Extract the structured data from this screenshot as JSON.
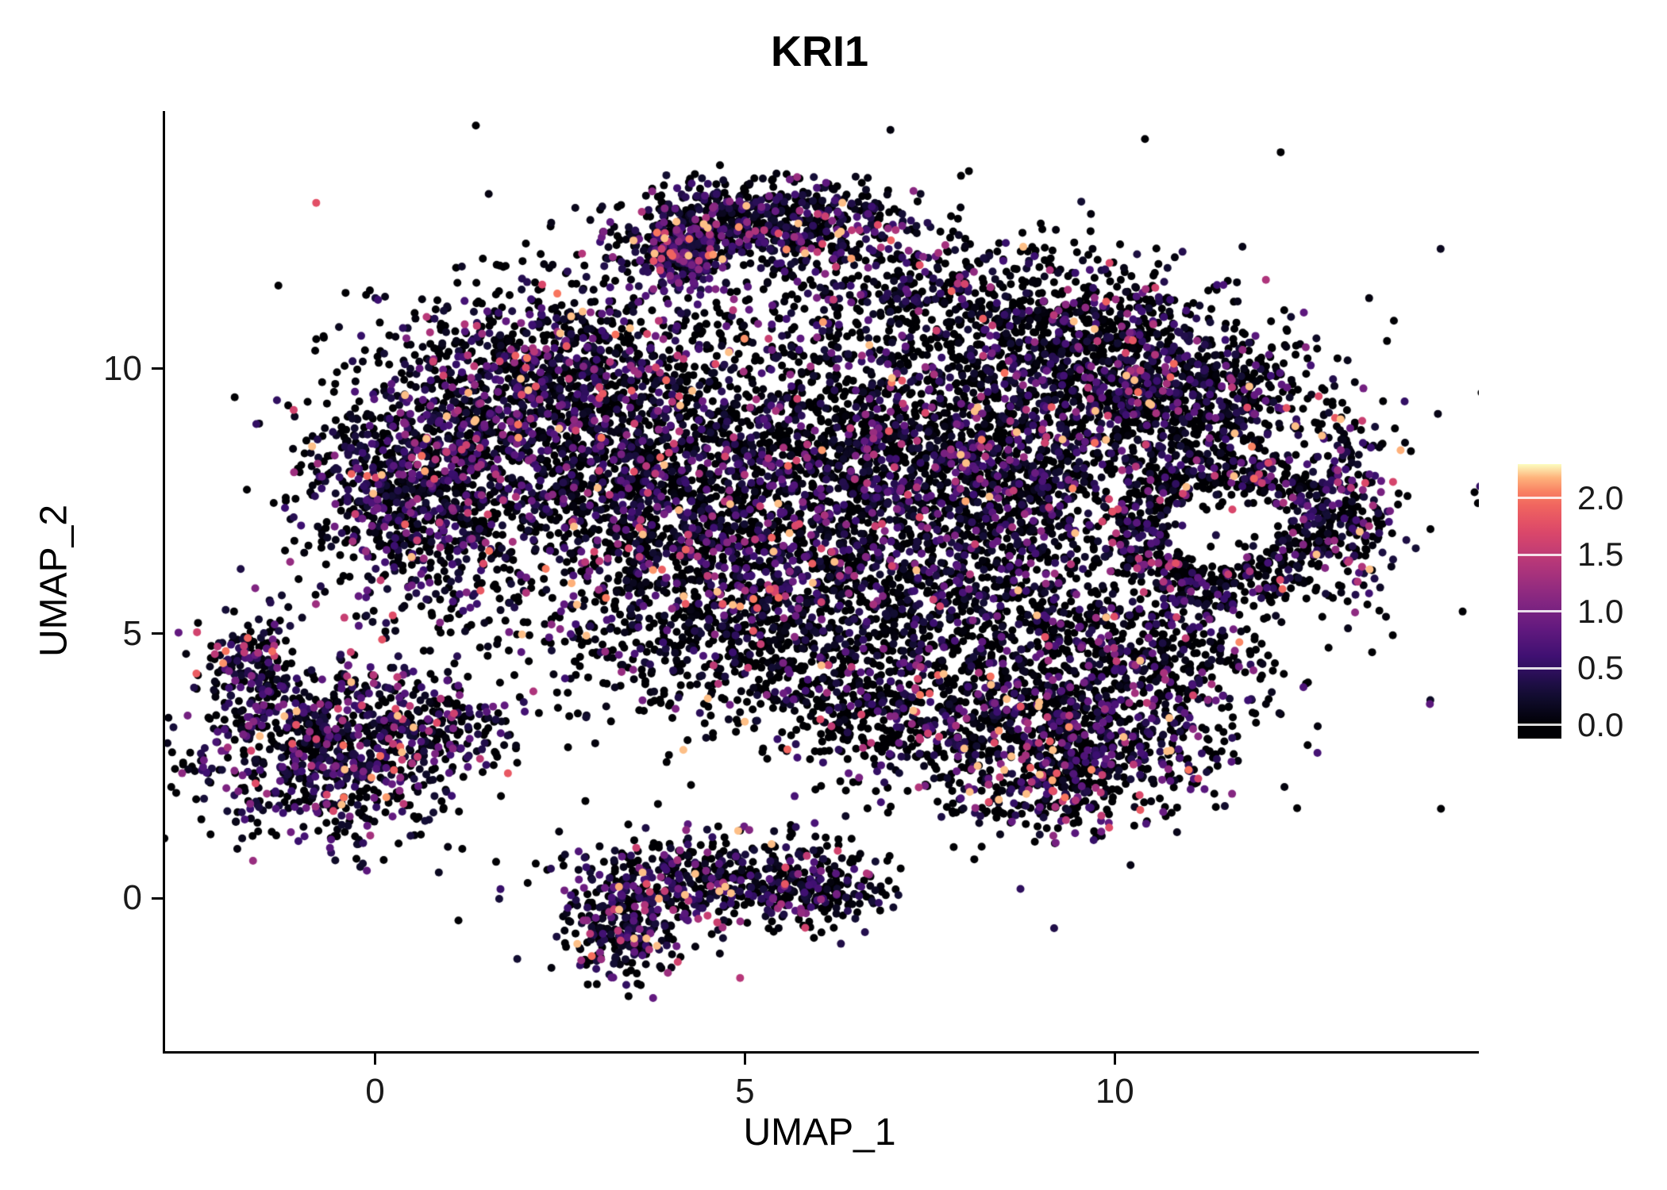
{
  "chart_data": {
    "type": "scatter",
    "title": "KRI1",
    "xlabel": "UMAP_1",
    "ylabel": "UMAP_2",
    "xlim": [
      -2.87,
      14.89
    ],
    "ylim": [
      -2.89,
      14.87
    ],
    "x_ticks": [
      {
        "value": 0,
        "label": "0"
      },
      {
        "value": 5,
        "label": "5"
      },
      {
        "value": 10,
        "label": "10"
      }
    ],
    "y_ticks": [
      {
        "value": 10,
        "label": "10"
      },
      {
        "value": 5,
        "label": "5"
      },
      {
        "value": 0,
        "label": "0"
      }
    ],
    "grid": false,
    "background": "#FFFFFF",
    "axis_color": "#000000",
    "point_radius_px": 5,
    "seed": 42,
    "expression_max": 2.2,
    "colormap_max": 2.3,
    "colormap": {
      "name": "magma",
      "stops": [
        [
          0.0,
          "#000004"
        ],
        [
          0.125,
          "#140E36"
        ],
        [
          0.25,
          "#3B0F70"
        ],
        [
          0.375,
          "#641A80"
        ],
        [
          0.5,
          "#8C2981"
        ],
        [
          0.625,
          "#B73779"
        ],
        [
          0.75,
          "#DE4968"
        ],
        [
          0.875,
          "#F7705C"
        ],
        [
          0.94,
          "#FEA772"
        ],
        [
          1.0,
          "#FCFDBF"
        ]
      ]
    },
    "colorbar": {
      "position": "right",
      "vmin": -0.12,
      "vmax": 2.3,
      "ticks": [
        {
          "value": 2.0,
          "label": "2.0"
        },
        {
          "value": 1.5,
          "label": "1.5"
        },
        {
          "value": 1.0,
          "label": "1.0"
        },
        {
          "value": 0.5,
          "label": "0.5"
        },
        {
          "value": 0.0,
          "label": "0.0"
        }
      ]
    },
    "clusters": [
      {
        "name": "top-arch",
        "type": "gauss",
        "cx": 5.2,
        "cy": 12.8,
        "sx": 0.95,
        "sy": 0.4,
        "n": 650,
        "p0": 0.45,
        "scale": 0.5
      },
      {
        "name": "arch-cap",
        "type": "gauss",
        "cx": 4.05,
        "cy": 12.15,
        "sx": 0.32,
        "sy": 0.32,
        "n": 280,
        "p0": 0.22,
        "scale": 0.55
      },
      {
        "name": "upper-left",
        "type": "gauss",
        "cx": 2.4,
        "cy": 9.7,
        "sx": 1.15,
        "sy": 0.95,
        "n": 1150,
        "p0": 0.48,
        "scale": 0.5
      },
      {
        "name": "left-lobe",
        "type": "gauss",
        "cx": 0.55,
        "cy": 7.7,
        "sx": 0.8,
        "sy": 1.05,
        "n": 950,
        "p0": 0.42,
        "scale": 0.5
      },
      {
        "name": "mid-left",
        "type": "gauss",
        "cx": 3.4,
        "cy": 7.7,
        "sx": 1.15,
        "sy": 1.15,
        "n": 1000,
        "p0": 0.55,
        "scale": 0.5
      },
      {
        "name": "center",
        "type": "gauss",
        "cx": 5.9,
        "cy": 8.4,
        "sx": 1.25,
        "sy": 1.3,
        "n": 1100,
        "p0": 0.55,
        "scale": 0.5
      },
      {
        "name": "center-low",
        "type": "gauss",
        "cx": 5.3,
        "cy": 6.1,
        "sx": 1.25,
        "sy": 0.85,
        "n": 700,
        "p0": 0.55,
        "scale": 0.5
      },
      {
        "name": "center-right",
        "type": "gauss",
        "cx": 8.4,
        "cy": 7.9,
        "sx": 1.25,
        "sy": 1.25,
        "n": 1350,
        "p0": 0.52,
        "scale": 0.5
      },
      {
        "name": "right-upper",
        "type": "gauss",
        "cx": 9.8,
        "cy": 9.9,
        "sx": 1.05,
        "sy": 0.7,
        "n": 600,
        "p0": 0.55,
        "scale": 0.5
      },
      {
        "name": "top-middle",
        "type": "gauss",
        "cx": 7.0,
        "cy": 11.3,
        "sx": 1.4,
        "sy": 0.75,
        "n": 520,
        "p0": 0.6,
        "scale": 0.5
      },
      {
        "name": "top-right",
        "type": "gauss",
        "cx": 9.5,
        "cy": 11.0,
        "sx": 1.0,
        "sy": 0.6,
        "n": 330,
        "p0": 0.6,
        "scale": 0.5
      },
      {
        "name": "right-lobe",
        "type": "gauss",
        "cx": 11.3,
        "cy": 9.4,
        "sx": 0.95,
        "sy": 0.7,
        "n": 520,
        "p0": 0.55,
        "scale": 0.5
      },
      {
        "name": "right-ring",
        "type": "ring",
        "cx": 11.45,
        "cy": 7.0,
        "sx": 1.15,
        "sy": 1.15,
        "spread": 0.32,
        "n": 650,
        "p0": 0.6,
        "scale": 0.5
      },
      {
        "name": "right-tip",
        "type": "gauss",
        "cx": 13.15,
        "cy": 7.3,
        "sx": 0.3,
        "sy": 0.85,
        "n": 230,
        "p0": 0.5,
        "scale": 0.5
      },
      {
        "name": "right-lower",
        "type": "gauss",
        "cx": 10.5,
        "cy": 4.7,
        "sx": 0.95,
        "sy": 0.85,
        "n": 520,
        "p0": 0.6,
        "scale": 0.5
      },
      {
        "name": "lower-right",
        "type": "gauss",
        "cx": 9.3,
        "cy": 2.9,
        "sx": 1.05,
        "sy": 0.8,
        "n": 950,
        "p0": 0.5,
        "scale": 0.62
      },
      {
        "name": "lower-mid",
        "type": "gauss",
        "cx": 7.1,
        "cy": 3.5,
        "sx": 1.05,
        "sy": 0.65,
        "n": 430,
        "p0": 0.62,
        "scale": 0.5
      },
      {
        "name": "mid-gap",
        "type": "gauss",
        "cx": 5.6,
        "cy": 4.4,
        "sx": 1.35,
        "sy": 0.6,
        "n": 330,
        "p0": 0.62,
        "scale": 0.5
      },
      {
        "name": "gap-sparse",
        "type": "gauss",
        "cx": 3.6,
        "cy": 5.0,
        "sx": 1.8,
        "sy": 0.7,
        "n": 240,
        "p0": 0.65,
        "scale": 0.5
      },
      {
        "name": "connector",
        "type": "gauss",
        "cx": 8.1,
        "cy": 5.4,
        "sx": 1.05,
        "sy": 0.7,
        "n": 300,
        "p0": 0.6,
        "scale": 0.5
      },
      {
        "name": "bottom-left-main",
        "type": "gauss",
        "cx": -0.7,
        "cy": 2.8,
        "sx": 0.9,
        "sy": 0.85,
        "n": 850,
        "p0": 0.4,
        "scale": 0.52
      },
      {
        "name": "bottom-left-tip",
        "type": "gauss",
        "cx": -1.7,
        "cy": 4.4,
        "sx": 0.28,
        "sy": 0.5,
        "n": 160,
        "p0": 0.35,
        "scale": 0.52
      },
      {
        "name": "bottom-left-ext",
        "type": "gauss",
        "cx": 0.9,
        "cy": 3.2,
        "sx": 0.55,
        "sy": 0.45,
        "n": 160,
        "p0": 0.5,
        "scale": 0.5
      },
      {
        "name": "bottom-center",
        "type": "gauss",
        "cx": 4.4,
        "cy": 0.35,
        "sx": 0.95,
        "sy": 0.5,
        "n": 430,
        "p0": 0.45,
        "scale": 0.55
      },
      {
        "name": "bottom-center-tail",
        "type": "gauss",
        "cx": 3.35,
        "cy": -0.6,
        "sx": 0.4,
        "sy": 0.5,
        "n": 260,
        "p0": 0.35,
        "scale": 0.55
      },
      {
        "name": "bottom-center-right",
        "type": "gauss",
        "cx": 5.9,
        "cy": 0.2,
        "sx": 0.55,
        "sy": 0.4,
        "n": 200,
        "p0": 0.55,
        "scale": 0.5
      },
      {
        "name": "stray-scatter",
        "type": "gauss",
        "cx": 6.0,
        "cy": 7.5,
        "sx": 4.5,
        "sy": 3.2,
        "n": 220,
        "p0": 0.6,
        "scale": 0.5
      }
    ]
  }
}
